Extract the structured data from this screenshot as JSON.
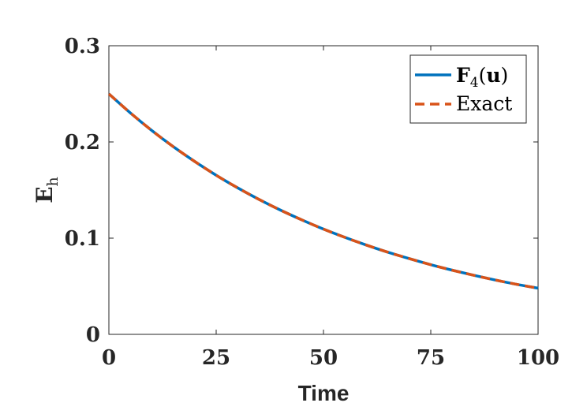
{
  "chart_data": {
    "type": "line",
    "xlabel": "Time",
    "ylabel": {
      "main": "E",
      "sub": "h"
    },
    "xlim": [
      0,
      100
    ],
    "ylim": [
      0,
      0.3
    ],
    "xticks": [
      0,
      25,
      50,
      75,
      100
    ],
    "xtick_labels": [
      "0",
      "25",
      "50",
      "75",
      "100"
    ],
    "yticks": [
      0,
      0.1,
      0.2,
      0.3
    ],
    "ytick_labels": [
      "0",
      "0.1",
      "0.2",
      "0.3"
    ],
    "grid": false,
    "legend_position": "top-right",
    "series": [
      {
        "name": {
          "bold": "F",
          "sub": "4",
          "paren_open": "(",
          "arg": "u",
          "paren_close": ")"
        },
        "color": "#0072BD",
        "style": "solid",
        "x": [
          0,
          5,
          10,
          15,
          20,
          25,
          30,
          35,
          40,
          45,
          50,
          55,
          60,
          65,
          70,
          75,
          80,
          85,
          90,
          95,
          100
        ],
        "y": [
          0.25,
          0.2302,
          0.2119,
          0.1951,
          0.1797,
          0.1654,
          0.1523,
          0.1402,
          0.1291,
          0.1189,
          0.1094,
          0.1008,
          0.0928,
          0.0854,
          0.0787,
          0.0724,
          0.0667,
          0.0614,
          0.0565,
          0.052,
          0.048
        ]
      },
      {
        "name": "Exact",
        "color": "#D95319",
        "style": "dashed",
        "x": [
          0,
          5,
          10,
          15,
          20,
          25,
          30,
          35,
          40,
          45,
          50,
          55,
          60,
          65,
          70,
          75,
          80,
          85,
          90,
          95,
          100
        ],
        "y": [
          0.25,
          0.2302,
          0.2119,
          0.1951,
          0.1797,
          0.1654,
          0.1523,
          0.1402,
          0.1291,
          0.1189,
          0.1094,
          0.1008,
          0.0928,
          0.0854,
          0.0787,
          0.0724,
          0.0667,
          0.0614,
          0.0565,
          0.052,
          0.048
        ]
      }
    ]
  }
}
